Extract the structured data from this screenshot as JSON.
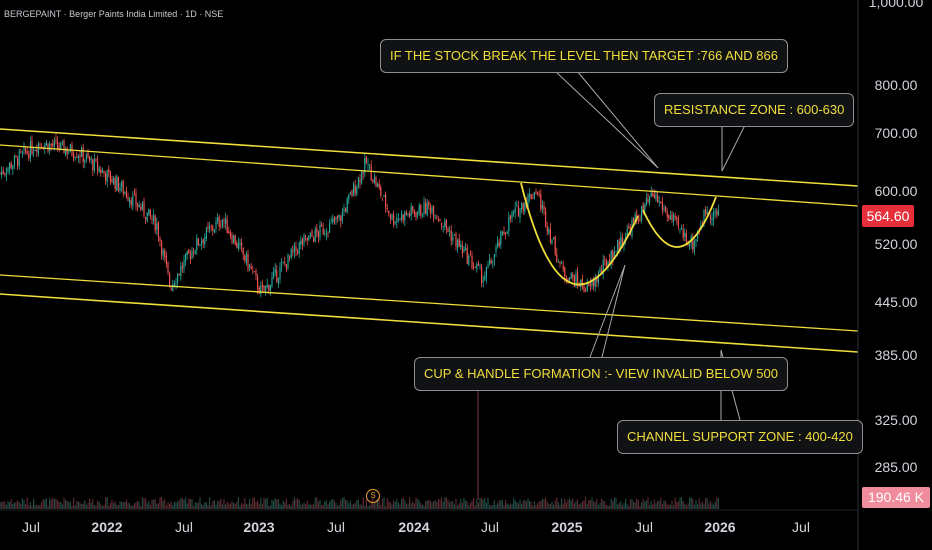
{
  "symbol_header": "BERGEPAINT · Berger Paints India Limited · 1D · NSE",
  "price_axis": [
    "1,000.00",
    "800.00",
    "700.00",
    "600.00",
    "520.00",
    "445.00",
    "385.00",
    "325.00",
    "285.00"
  ],
  "time_axis": [
    "Jul",
    "2022",
    "Jul",
    "2023",
    "Jul",
    "2024",
    "Jul",
    "2025",
    "Jul",
    "2026",
    "Jul"
  ],
  "last_price": "564.60",
  "volume_label": "190.46 K",
  "volume_marker": "S",
  "colors": {
    "up": "#26a69a",
    "down": "#ef5350",
    "lines": "#f0de3c",
    "last_price_bg": "#e5303c"
  },
  "annotations": {
    "target": "IF THE STOCK BREAK THE LEVEL THEN TARGET :766 AND 866",
    "resistance": "RESISTANCE ZONE : 600-630",
    "cup_handle": "CUP & HANDLE FORMATION :- VIEW INVALID BELOW 500",
    "support": "CHANNEL SUPPORT ZONE : 400-420"
  },
  "chart_data": {
    "type": "candlestick",
    "title": "BERGEPAINT · Berger Paints India Limited · 1D · NSE",
    "y_scale": "log",
    "ylim": [
      270,
      1050
    ],
    "x_range": [
      "2021-05",
      "2026-10"
    ],
    "last_price": 564.6,
    "approx_close_path": [
      {
        "x": "2021-05",
        "y": 640
      },
      {
        "x": "2021-08",
        "y": 700
      },
      {
        "x": "2021-11",
        "y": 680
      },
      {
        "x": "2022-02",
        "y": 620
      },
      {
        "x": "2022-05",
        "y": 550
      },
      {
        "x": "2022-06",
        "y": 460
      },
      {
        "x": "2022-08",
        "y": 520
      },
      {
        "x": "2022-10",
        "y": 560
      },
      {
        "x": "2022-12",
        "y": 490
      },
      {
        "x": "2023-01",
        "y": 450
      },
      {
        "x": "2023-04",
        "y": 520
      },
      {
        "x": "2023-07",
        "y": 560
      },
      {
        "x": "2023-09",
        "y": 660
      },
      {
        "x": "2023-11",
        "y": 560
      },
      {
        "x": "2024-02",
        "y": 580
      },
      {
        "x": "2024-04",
        "y": 520
      },
      {
        "x": "2024-06",
        "y": 470
      },
      {
        "x": "2024-08",
        "y": 560
      },
      {
        "x": "2024-10",
        "y": 610
      },
      {
        "x": "2024-12",
        "y": 480
      },
      {
        "x": "2025-02",
        "y": 455
      },
      {
        "x": "2025-05",
        "y": 540
      },
      {
        "x": "2025-07",
        "y": 600
      },
      {
        "x": "2025-09",
        "y": 540
      },
      {
        "x": "2025-10",
        "y": 520
      },
      {
        "x": "2025-11",
        "y": 575
      },
      {
        "x": "2025-12",
        "y": 564.6
      }
    ]
  }
}
